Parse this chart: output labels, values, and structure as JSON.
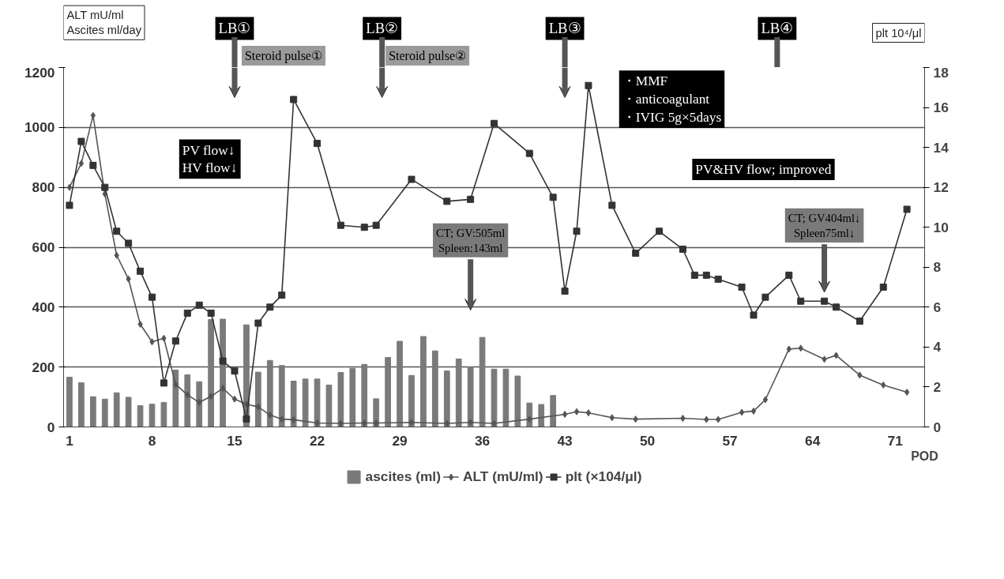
{
  "chart_data": {
    "type": "line",
    "ylabel": "ALT mU/ml\nAscites ml/day",
    "y2label": "plt 10⁴/μl",
    "xlabel": "POD",
    "xlim": [
      0.5,
      73.5
    ],
    "xticks": [
      1,
      8,
      15,
      22,
      29,
      36,
      43,
      50,
      57,
      64,
      71
    ],
    "ylim": [
      0,
      1200
    ],
    "yticks": [
      0,
      200,
      400,
      600,
      800,
      1000,
      1200
    ],
    "y2lim": [
      0,
      18
    ],
    "y2ticks": [
      0,
      2,
      4,
      6,
      8,
      10,
      12,
      14,
      16,
      18
    ],
    "grid": "y",
    "legend": "bottom",
    "series": [
      {
        "name": "ascites (ml)",
        "type": "bar",
        "color": "#7a7a7a",
        "x": [
          1,
          2,
          3,
          4,
          5,
          6,
          7,
          8,
          9,
          10,
          11,
          12,
          13,
          14,
          15,
          16,
          17,
          18,
          19,
          20,
          21,
          22,
          23,
          24,
          25,
          26,
          27,
          28,
          29,
          30,
          31,
          32,
          33,
          34,
          35,
          36,
          37,
          38,
          39,
          40,
          41,
          42
        ],
        "values": [
          166,
          148,
          101,
          93,
          114,
          99,
          71,
          76,
          82,
          190,
          174,
          151,
          359,
          360,
          null,
          341,
          183,
          222,
          205,
          153,
          160,
          160,
          140,
          182,
          196,
          209,
          94,
          232,
          286,
          172,
          302,
          254,
          187,
          227,
          200,
          299,
          193,
          193,
          170,
          80,
          75,
          105
        ]
      },
      {
        "name": "ALT (mU/ml)",
        "color": "#555555",
        "marker": "diamond",
        "x": [
          1,
          2,
          3,
          4,
          5,
          6,
          7,
          8,
          9,
          10,
          11,
          12,
          13,
          14,
          15,
          16,
          17,
          18,
          19,
          20,
          22,
          24,
          26,
          27,
          30,
          33,
          35,
          37,
          40,
          43,
          44,
          45,
          47,
          49,
          53,
          55,
          56,
          58,
          59,
          60,
          62,
          63,
          65,
          66,
          68,
          70,
          72
        ],
        "values": [
          800,
          880,
          1040,
          778,
          573,
          494,
          343,
          284,
          296,
          142,
          107,
          82,
          102,
          129,
          93,
          76,
          67,
          40,
          26,
          24,
          13,
          12,
          13,
          13,
          15,
          12,
          15,
          12,
          26,
          42,
          51,
          47,
          31,
          26,
          29,
          25,
          25,
          49,
          53,
          91,
          260,
          263,
          226,
          239,
          173,
          140,
          116
        ]
      },
      {
        "name": "plt (×104/μl)",
        "axis": "y2",
        "color": "#333333",
        "marker": "square",
        "x": [
          1,
          2,
          3,
          4,
          5,
          6,
          7,
          8,
          9,
          10,
          11,
          12,
          13,
          14,
          15,
          16,
          17,
          18,
          19,
          20,
          22,
          24,
          26,
          27,
          30,
          33,
          35,
          37,
          40,
          42,
          43,
          44,
          45,
          47,
          49,
          51,
          53,
          54,
          55,
          56,
          58,
          59,
          60,
          62,
          63,
          65,
          66,
          68,
          70,
          72
        ],
        "values": [
          11.1,
          14.3,
          13.1,
          12.0,
          9.8,
          9.2,
          7.8,
          6.5,
          2.2,
          4.3,
          5.7,
          6.1,
          5.7,
          3.3,
          2.8,
          0.4,
          5.2,
          6.0,
          6.6,
          16.4,
          14.2,
          10.1,
          10.0,
          10.1,
          12.4,
          11.3,
          11.4,
          15.2,
          13.7,
          11.5,
          6.8,
          9.8,
          17.1,
          11.1,
          8.7,
          9.8,
          8.9,
          7.6,
          7.6,
          7.4,
          7.0,
          5.6,
          6.5,
          7.6,
          6.3,
          6.3,
          6.0,
          5.3,
          7.0,
          10.9
        ]
      }
    ],
    "annotations": [
      "LB①",
      "LB②",
      "LB③",
      "LB④",
      "CT; GV:505ml\nSpleen:143ml",
      "CT; GV404ml↓\nSpleen75ml↓",
      "Steroid pulse①",
      "Steroid pulse②",
      "・MMF\n・anticoagulant\n・IVIG 5g×5days",
      "PV flow↓\nHV flow↓",
      "PV&HV flow; improved"
    ]
  }
}
